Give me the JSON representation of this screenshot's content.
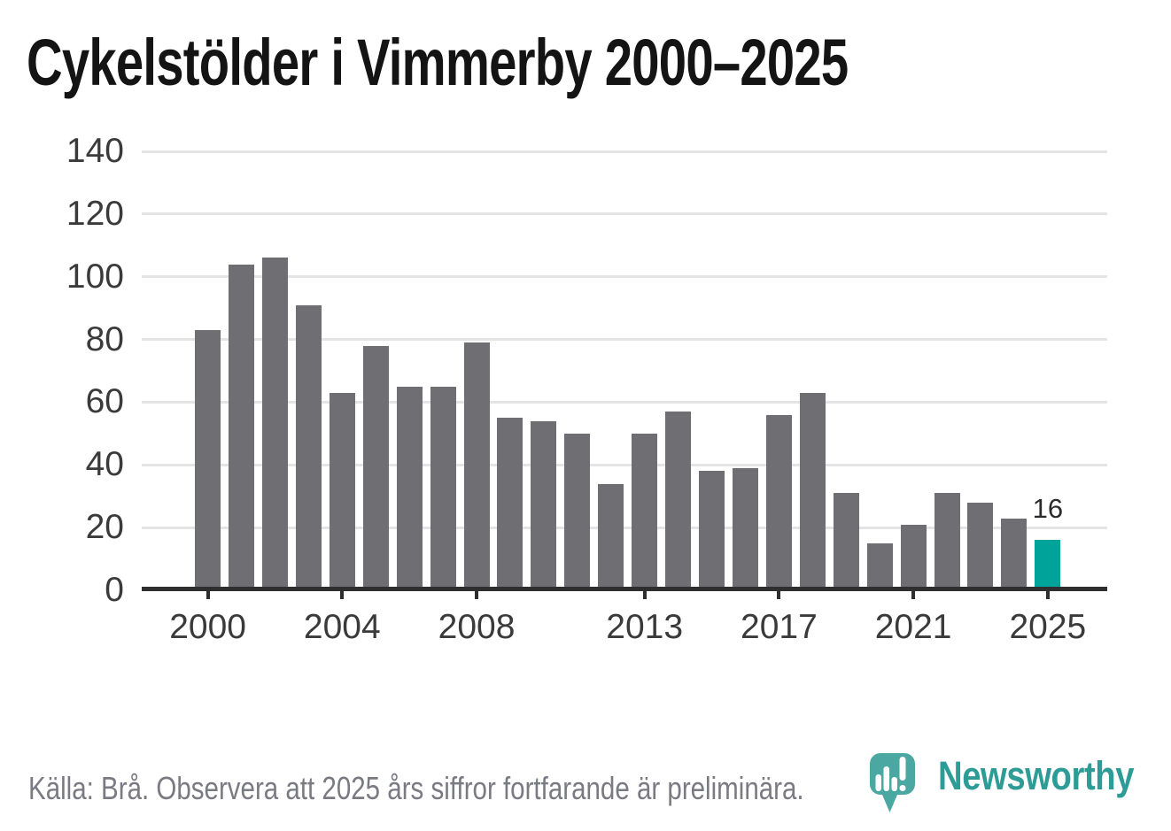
{
  "title": "Cykelstölder i Vimmerby 2000–2025",
  "chart_data": {
    "type": "bar",
    "title": "Cykelstölder i Vimmerby 2000–2025",
    "categories": [
      2000,
      2001,
      2002,
      2003,
      2004,
      2005,
      2006,
      2007,
      2008,
      2009,
      2010,
      2011,
      2012,
      2013,
      2014,
      2015,
      2016,
      2017,
      2018,
      2019,
      2020,
      2021,
      2022,
      2023,
      2024,
      2025
    ],
    "values": [
      83,
      104,
      106,
      91,
      63,
      78,
      65,
      65,
      79,
      55,
      54,
      50,
      34,
      50,
      57,
      38,
      39,
      56,
      63,
      31,
      15,
      21,
      31,
      28,
      23,
      16
    ],
    "xlabel": "",
    "ylabel": "",
    "ylim": [
      0,
      140
    ],
    "y_ticks": [
      0,
      20,
      40,
      60,
      80,
      100,
      120,
      140
    ],
    "x_tick_years": [
      2000,
      2004,
      2008,
      2013,
      2017,
      2021,
      2025
    ],
    "grid": true,
    "legend": false,
    "highlight_year": 2025,
    "highlight_value_label": "16",
    "bar_color": "#6F6E73",
    "highlight_color": "#00A39A",
    "gridline_color": "#E4E4E4",
    "axis_color": "#2E2E2E",
    "tick_label_color": "#3A3A3A"
  },
  "footer": {
    "source_note": "Källa: Brå. Observera att 2025 års siffror fortfarande är preliminära."
  },
  "logo": {
    "wordmark": "Newsworthy",
    "mark_color": "#4BA7A1",
    "wordmark_color": "#2E9C96"
  }
}
